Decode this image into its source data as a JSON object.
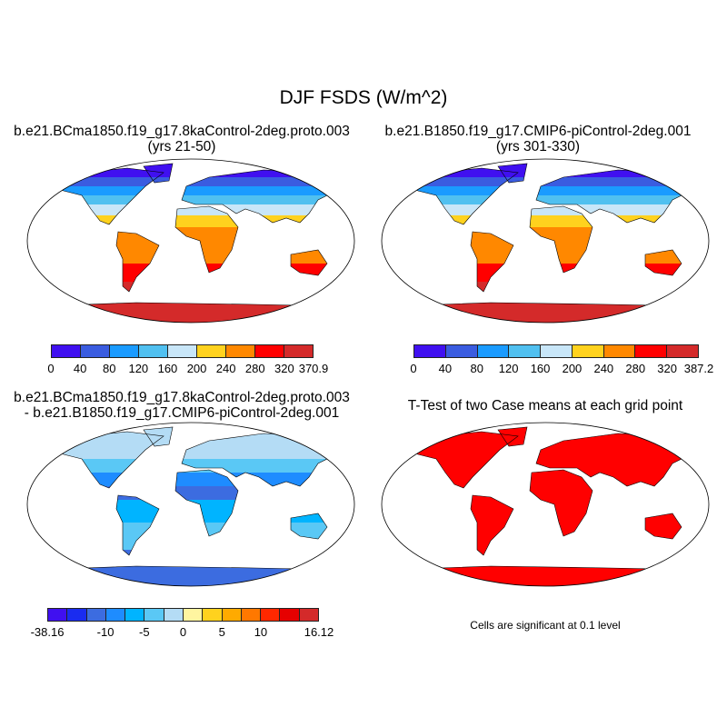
{
  "title": "DJF FSDS (W/m^2)",
  "panels": [
    {
      "title": "b.e21.BCma1850.f19_g17.8kaControl-2deg.proto.003",
      "subtitle": "(yrs 21-50)"
    },
    {
      "title": "b.e21.B1850.f19_g17.CMIP6-piControl-2deg.001",
      "subtitle": "(yrs 301-330)"
    },
    {
      "title": "b.e21.BCma1850.f19_g17.8kaControl-2deg.proto.003",
      "subtitle": "- b.e21.B1850.f19_g17.CMIP6-piControl-2deg.001"
    },
    {
      "title": "T-Test of two Case means at each grid point",
      "subtitle": ""
    }
  ],
  "colorbars": [
    {
      "colors": [
        "#4010f0",
        "#3a5ce0",
        "#1a9bff",
        "#50c0f0",
        "#c8e6f8",
        "#ffd21e",
        "#ff8800",
        "#ff0000",
        "#d42a2a"
      ],
      "labels": [
        "0",
        "40",
        "80",
        "120",
        "160",
        "200",
        "240",
        "280",
        "320",
        "370.9"
      ]
    },
    {
      "colors": [
        "#4010f0",
        "#3a5ce0",
        "#1a9bff",
        "#50c0f0",
        "#c8e6f8",
        "#ffd21e",
        "#ff8800",
        "#ff0000",
        "#d42a2a"
      ],
      "labels": [
        "0",
        "40",
        "80",
        "120",
        "160",
        "200",
        "240",
        "280",
        "320",
        "387.2"
      ]
    },
    {
      "colors": [
        "#4010f0",
        "#1a2cf0",
        "#3c6ce0",
        "#1e8cff",
        "#00b4ff",
        "#5ac8f5",
        "#b4dcf5",
        "#fff5a0",
        "#ffd21e",
        "#ffaa00",
        "#ff7800",
        "#ff2800",
        "#e60000",
        "#d42a2a"
      ],
      "labels": [
        "-38.16",
        "-10",
        "-5",
        "0",
        "5",
        "10",
        "16.12"
      ],
      "label_boundaries": [
        0,
        3,
        5,
        7,
        9,
        11,
        14
      ]
    }
  ],
  "significance_color": "#ff0000",
  "footnote": "Cells are significant at 0.1 level"
}
